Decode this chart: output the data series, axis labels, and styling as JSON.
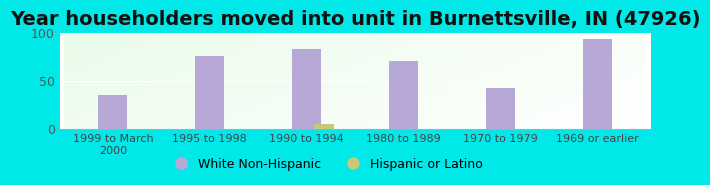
{
  "title": "Year householders moved into unit in Burnettsville, IN (47926)",
  "categories": [
    "1999 to March\n2000",
    "1995 to 1998",
    "1990 to 1994",
    "1980 to 1989",
    "1970 to 1979",
    "1969 or earlier"
  ],
  "white_values": [
    35,
    76,
    83,
    70,
    42,
    93
  ],
  "hispanic_values": [
    0,
    0,
    5,
    0,
    0,
    0
  ],
  "white_color": "#b8a8d8",
  "hispanic_color": "#c8c87a",
  "background_outer": "#00e8e8",
  "ylim": [
    0,
    100
  ],
  "yticks": [
    0,
    50,
    100
  ],
  "legend_white": "White Non-Hispanic",
  "legend_hispanic": "Hispanic or Latino",
  "title_fontsize": 14,
  "bar_width": 0.3
}
